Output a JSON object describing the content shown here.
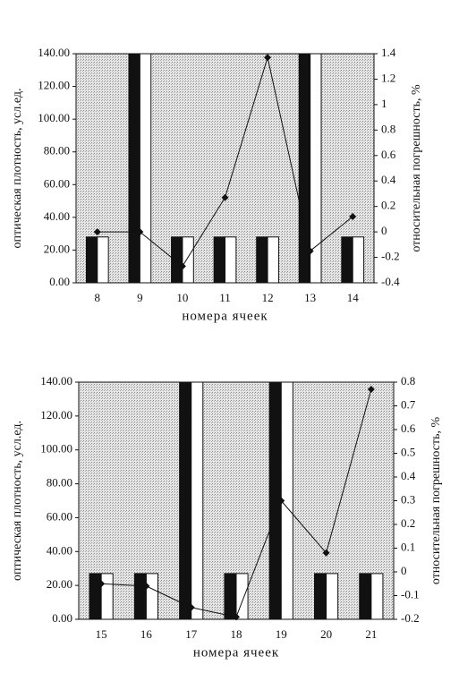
{
  "chart_data": [
    {
      "type": "bar",
      "x_label": "номера ячеек",
      "y_label": "оптическая плотность, усл.ед.",
      "y2_label": "относительная погрешность, %",
      "categories": [
        "8",
        "9",
        "10",
        "11",
        "12",
        "13",
        "14"
      ],
      "ylim": [
        0,
        140
      ],
      "yticks": [
        {
          "value": 0,
          "label": "0.00"
        },
        {
          "value": 20,
          "label": "20.00"
        },
        {
          "value": 40,
          "label": "40.00"
        },
        {
          "value": 60,
          "label": "60.00"
        },
        {
          "value": 80,
          "label": "80.00"
        },
        {
          "value": 100,
          "label": "100.00"
        },
        {
          "value": 120,
          "label": "120.00"
        },
        {
          "value": 140,
          "label": "140.00"
        }
      ],
      "y2lim": [
        -0.4,
        1.4
      ],
      "y2ticks": [
        -0.4,
        -0.2,
        0,
        0.2,
        0.4,
        0.6,
        0.8,
        1,
        1.2,
        1.4
      ],
      "series": [
        {
          "color": "#111111",
          "values": [
            28,
            140,
            28,
            28,
            28,
            140,
            28
          ]
        },
        {
          "color": "#ffffff",
          "values": [
            28,
            140,
            28,
            28,
            28,
            140,
            28
          ]
        },
        {
          "type": "line",
          "axis": "y2",
          "color": "#111111",
          "values": [
            0,
            0,
            -0.27,
            0.27,
            1.37,
            -0.15,
            0.12
          ]
        }
      ]
    },
    {
      "type": "bar",
      "x_label": "номера ячеек",
      "y_label": "оптическая плотность, усл.ед.",
      "y2_label": "относительная погрешность, %",
      "categories": [
        "15",
        "16",
        "17",
        "18",
        "19",
        "20",
        "21"
      ],
      "ylim": [
        0,
        140
      ],
      "yticks": [
        {
          "value": 0,
          "label": "0.00"
        },
        {
          "value": 20,
          "label": "20.00"
        },
        {
          "value": 40,
          "label": "40.00"
        },
        {
          "value": 60,
          "label": "60.00"
        },
        {
          "value": 80,
          "label": "80.00"
        },
        {
          "value": 100,
          "label": "100.00"
        },
        {
          "value": 120,
          "label": "120.00"
        },
        {
          "value": 140,
          "label": "140.00"
        }
      ],
      "y2lim": [
        -0.2,
        0.8
      ],
      "y2ticks": [
        -0.2,
        -0.1,
        0,
        0.1,
        0.2,
        0.3,
        0.4,
        0.5,
        0.6,
        0.7,
        0.8
      ],
      "series": [
        {
          "color": "#111111",
          "values": [
            27,
            27,
            140,
            27,
            140,
            27,
            27
          ]
        },
        {
          "color": "#ffffff",
          "values": [
            27,
            27,
            140,
            27,
            140,
            27,
            27
          ]
        },
        {
          "type": "line",
          "axis": "y2",
          "color": "#111111",
          "values": [
            -0.05,
            -0.06,
            -0.15,
            -0.19,
            0.3,
            0.08,
            0.77
          ]
        }
      ]
    }
  ]
}
